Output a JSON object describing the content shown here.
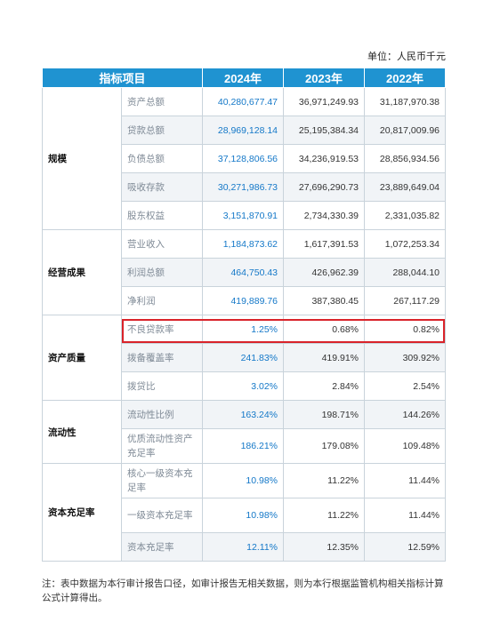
{
  "unit_label": "单位：人民币千元",
  "header": {
    "item": "指标项目",
    "y2024": "2024年",
    "y2023": "2023年",
    "y2022": "2022年"
  },
  "groups": {
    "scale": "规模",
    "operating": "经营成果",
    "asset_quality": "资产质量",
    "liquidity": "流动性",
    "capital": "资本充足率"
  },
  "rows": [
    {
      "item": "资产总额",
      "y2024": "40,280,677.47",
      "y2023": "36,971,249.93",
      "y2022": "31,187,970.38"
    },
    {
      "item": "贷款总额",
      "y2024": "28,969,128.14",
      "y2023": "25,195,384.34",
      "y2022": "20,817,009.96"
    },
    {
      "item": "负债总额",
      "y2024": "37,128,806.56",
      "y2023": "34,236,919.53",
      "y2022": "28,856,934.56"
    },
    {
      "item": "吸收存款",
      "y2024": "30,271,986.73",
      "y2023": "27,696,290.73",
      "y2022": "23,889,649.04"
    },
    {
      "item": "股东权益",
      "y2024": "3,151,870.91",
      "y2023": "2,734,330.39",
      "y2022": "2,331,035.82"
    },
    {
      "item": "营业收入",
      "y2024": "1,184,873.62",
      "y2023": "1,617,391.53",
      "y2022": "1,072,253.34"
    },
    {
      "item": "利润总额",
      "y2024": "464,750.43",
      "y2023": "426,962.39",
      "y2022": "288,044.10"
    },
    {
      "item": "净利润",
      "y2024": "419,889.76",
      "y2023": "387,380.45",
      "y2022": "267,117.29"
    },
    {
      "item": "不良贷款率",
      "y2024": "1.25%",
      "y2023": "0.68%",
      "y2022": "0.82%"
    },
    {
      "item": "拨备覆盖率",
      "y2024": "241.83%",
      "y2023": "419.91%",
      "y2022": "309.92%"
    },
    {
      "item": "拨贷比",
      "y2024": "3.02%",
      "y2023": "2.84%",
      "y2022": "2.54%"
    },
    {
      "item": "流动性比例",
      "y2024": "163.24%",
      "y2023": "198.71%",
      "y2022": "144.26%"
    },
    {
      "item": "优质流动性资产充足率",
      "y2024": "186.21%",
      "y2023": "179.08%",
      "y2022": "109.48%"
    },
    {
      "item": "核心一级资本充足率",
      "y2024": "10.98%",
      "y2023": "11.22%",
      "y2022": "11.44%"
    },
    {
      "item": "一级资本充足率",
      "y2024": "10.98%",
      "y2023": "11.22%",
      "y2022": "11.44%"
    },
    {
      "item": "资本充足率",
      "y2024": "12.11%",
      "y2023": "12.35%",
      "y2022": "12.59%"
    }
  ],
  "note": "注：表中数据为本行审计报告口径，如审计报告无相关数据，则为本行根据监管机构相关指标计算公式计算得出。",
  "colors": {
    "header_bg": "#1f93d1",
    "value_2024": "#1478c8",
    "highlight_border": "#d9232a",
    "shade": "#f1f4f7"
  }
}
